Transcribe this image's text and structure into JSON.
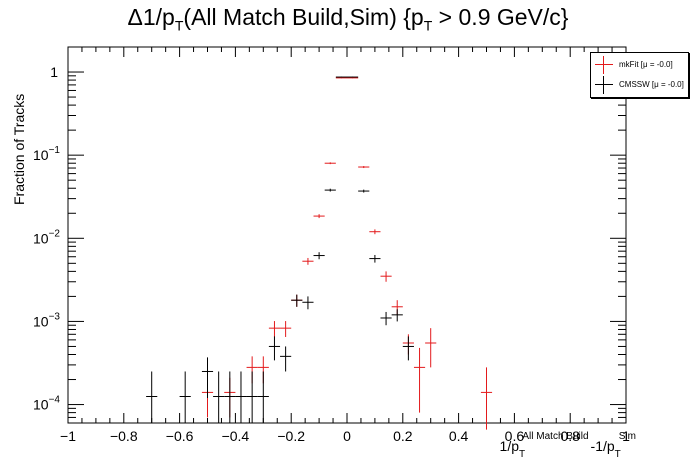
{
  "title_text": {
    "main_pre": "Δ1/p",
    "main_sub": "T",
    "main_mid": "(All Match Build,Sim) {p",
    "main_sub2": "T",
    "main_post": " > 0.9 GeV/c}"
  },
  "chart_data": {
    "type": "scatter",
    "ylabel": "Fraction of Tracks",
    "xlabel_parts": {
      "a": "1/p",
      "a_sub": "T",
      "a_sup": "All Match Build",
      "b": "-1/p",
      "b_sub": "T",
      "b_sup": "Sim"
    },
    "xlim": [
      -1,
      1
    ],
    "ylim": [
      6e-05,
      2
    ],
    "yscale": "log",
    "x_ticks": [
      -1,
      -0.8,
      -0.6,
      -0.4,
      -0.2,
      0,
      0.2,
      0.4,
      0.6,
      0.8,
      1
    ],
    "x_tick_labels": [
      "−1",
      "−0.8",
      "−0.6",
      "−0.4",
      "−0.2",
      "0",
      "0.2",
      "0.4",
      "0.6",
      "0.8",
      "1"
    ],
    "y_ticks": [
      0.0001,
      0.001,
      0.01,
      0.1,
      1
    ],
    "y_tick_labels": [
      {
        "base": "10",
        "exp": "−4"
      },
      {
        "base": "10",
        "exp": "−3"
      },
      {
        "base": "10",
        "exp": "−2"
      },
      {
        "base": "10",
        "exp": "−1"
      },
      {
        "base": "1",
        "exp": ""
      }
    ],
    "bin_width": 0.04,
    "legend_position": "top-right",
    "series": [
      {
        "name": "mkFit  [μ = -0.0]",
        "color": "#e31a1c",
        "points": [
          {
            "x": -0.5,
            "y": 0.00014,
            "lo": 7e-05,
            "hi": 0.00021
          },
          {
            "x": -0.42,
            "y": 0.00014,
            "lo": 7e-05,
            "hi": 0.00021
          },
          {
            "x": -0.34,
            "y": 0.00028,
            "lo": 0.00018,
            "hi": 0.00038
          },
          {
            "x": -0.3,
            "y": 0.00028,
            "lo": 0.00018,
            "hi": 0.00038
          },
          {
            "x": -0.26,
            "y": 0.00083,
            "lo": 0.00065,
            "hi": 0.00101
          },
          {
            "x": -0.22,
            "y": 0.00083,
            "lo": 0.00065,
            "hi": 0.00101
          },
          {
            "x": -0.18,
            "y": 0.0018,
            "lo": 0.0015,
            "hi": 0.0021
          },
          {
            "x": -0.14,
            "y": 0.0053,
            "lo": 0.0048,
            "hi": 0.0058
          },
          {
            "x": -0.1,
            "y": 0.0185,
            "lo": 0.0175,
            "hi": 0.0195
          },
          {
            "x": -0.06,
            "y": 0.08,
            "lo": 0.078,
            "hi": 0.082
          },
          {
            "x": -0.02,
            "y": 0.85,
            "lo": 0.84,
            "hi": 0.86
          },
          {
            "x": 0.02,
            "y": 0.85,
            "lo": 0.84,
            "hi": 0.86
          },
          {
            "x": 0.06,
            "y": 0.072,
            "lo": 0.07,
            "hi": 0.074
          },
          {
            "x": 0.1,
            "y": 0.012,
            "lo": 0.0112,
            "hi": 0.0128
          },
          {
            "x": 0.14,
            "y": 0.0035,
            "lo": 0.003,
            "hi": 0.004
          },
          {
            "x": 0.18,
            "y": 0.0015,
            "lo": 0.0012,
            "hi": 0.0018
          },
          {
            "x": 0.22,
            "y": 0.00055,
            "lo": 0.0004,
            "hi": 0.0007
          },
          {
            "x": 0.26,
            "y": 0.00028,
            "lo": 8e-05,
            "hi": 0.00048
          },
          {
            "x": 0.3,
            "y": 0.00055,
            "lo": 0.00028,
            "hi": 0.00083
          },
          {
            "x": 0.5,
            "y": 0.00014,
            "lo": 5e-05,
            "hi": 0.00028
          }
        ]
      },
      {
        "name": "CMSSW  [μ = -0.0]",
        "color": "#000000",
        "points": [
          {
            "x": -0.7,
            "y": 0.000125,
            "lo": 6e-05,
            "hi": 0.00025
          },
          {
            "x": -0.58,
            "y": 0.000125,
            "lo": 6e-05,
            "hi": 0.00025
          },
          {
            "x": -0.5,
            "y": 0.00025,
            "lo": 0.00012,
            "hi": 0.00037
          },
          {
            "x": -0.46,
            "y": 0.000125,
            "lo": 6e-05,
            "hi": 0.00025
          },
          {
            "x": -0.42,
            "y": 0.000125,
            "lo": 6e-05,
            "hi": 0.00025
          },
          {
            "x": -0.38,
            "y": 0.000125,
            "lo": 6e-05,
            "hi": 0.00025
          },
          {
            "x": -0.34,
            "y": 0.000125,
            "lo": 6e-05,
            "hi": 0.00025
          },
          {
            "x": -0.3,
            "y": 0.000125,
            "lo": 6e-05,
            "hi": 0.00025
          },
          {
            "x": -0.26,
            "y": 0.0005,
            "lo": 0.00034,
            "hi": 0.00066
          },
          {
            "x": -0.22,
            "y": 0.00038,
            "lo": 0.00025,
            "hi": 0.0005
          },
          {
            "x": -0.18,
            "y": 0.0018,
            "lo": 0.0015,
            "hi": 0.0021
          },
          {
            "x": -0.14,
            "y": 0.0017,
            "lo": 0.0014,
            "hi": 0.002
          },
          {
            "x": -0.1,
            "y": 0.0062,
            "lo": 0.0056,
            "hi": 0.0068
          },
          {
            "x": -0.06,
            "y": 0.038,
            "lo": 0.0365,
            "hi": 0.0395
          },
          {
            "x": -0.02,
            "y": 0.87,
            "lo": 0.86,
            "hi": 0.88
          },
          {
            "x": 0.02,
            "y": 0.87,
            "lo": 0.86,
            "hi": 0.88
          },
          {
            "x": 0.06,
            "y": 0.037,
            "lo": 0.0355,
            "hi": 0.0385
          },
          {
            "x": 0.1,
            "y": 0.0057,
            "lo": 0.0051,
            "hi": 0.0063
          },
          {
            "x": 0.14,
            "y": 0.0011,
            "lo": 0.0009,
            "hi": 0.0013
          },
          {
            "x": 0.18,
            "y": 0.0012,
            "lo": 0.001,
            "hi": 0.0014
          },
          {
            "x": 0.22,
            "y": 0.0005,
            "lo": 0.00034,
            "hi": 0.00066
          }
        ]
      }
    ]
  }
}
